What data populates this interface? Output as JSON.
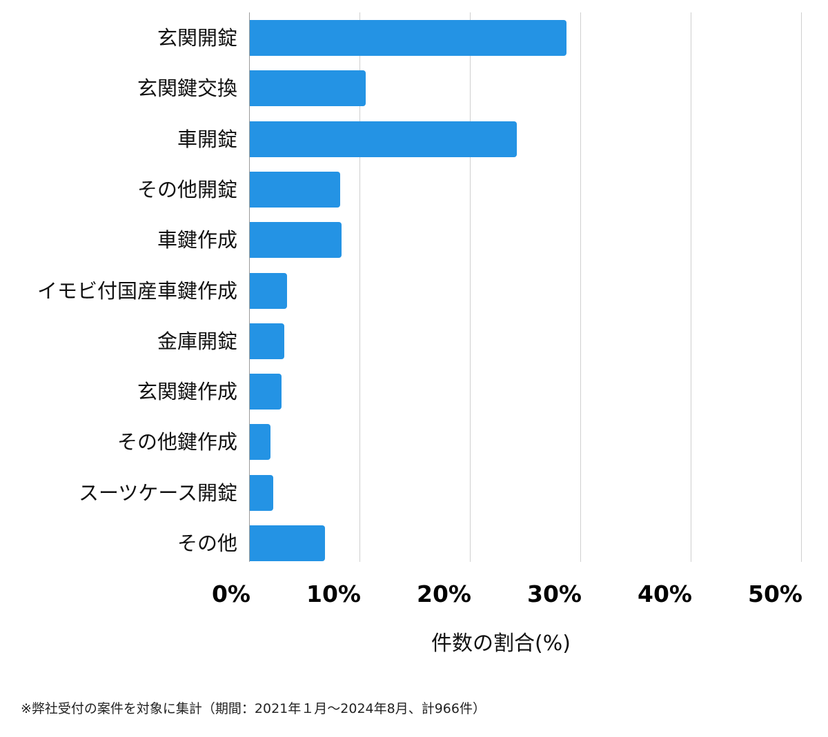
{
  "chart_data": {
    "type": "bar",
    "orientation": "horizontal",
    "title": "",
    "xlabel": "件数の割合(%)",
    "ylabel": "",
    "xlim": [
      0,
      50
    ],
    "xticks": [
      "0%",
      "10%",
      "20%",
      "30%",
      "40%",
      "50%"
    ],
    "grid": true,
    "legend": null,
    "bar_color": "#2493e4",
    "categories": [
      "玄関開錠",
      "玄関鍵交換",
      "車開錠",
      "その他開錠",
      "車鍵作成",
      "イモビ付国産車鍵作成",
      "金庫開錠",
      "玄関鍵作成",
      "その他鍵作成",
      "スーツケース開錠",
      "その他"
    ],
    "values": [
      28.7,
      10.5,
      24.2,
      8.2,
      8.3,
      3.4,
      3.1,
      2.9,
      1.9,
      2.1,
      6.8
    ],
    "footnote": "※弊社受付の案件を対象に集計（期間：2021年１月～2024年8月、計966件）"
  }
}
